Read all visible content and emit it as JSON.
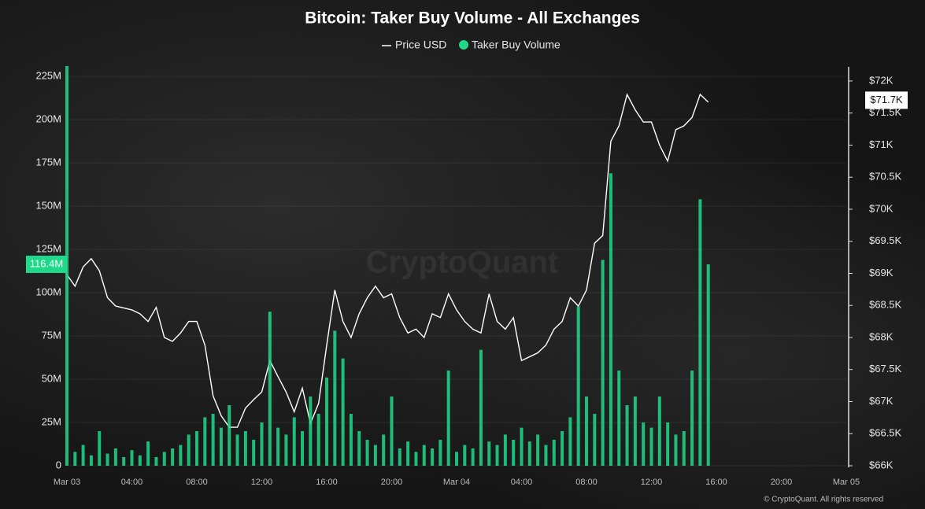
{
  "chart_data": {
    "type": "bar-line",
    "title": "Bitcoin: Taker Buy Volume - All Exchanges",
    "x": [
      0,
      0.5,
      1,
      1.5,
      2,
      2.5,
      3,
      3.5,
      4,
      4.5,
      5,
      5.5,
      6,
      6.5,
      7,
      7.5,
      8,
      8.5,
      9,
      9.5,
      10,
      10.5,
      11,
      11.5,
      12,
      12.5,
      13,
      13.5,
      14,
      14.5,
      15,
      15.5,
      16,
      16.5,
      17,
      17.5,
      18,
      18.5,
      19,
      19.5,
      20,
      20.5,
      21,
      21.5,
      22,
      22.5,
      23,
      23.5,
      24,
      24.5,
      25,
      25.5,
      26,
      26.5,
      27,
      27.5,
      28,
      28.5,
      29,
      29.5,
      30,
      30.5,
      31,
      31.5,
      32,
      32.5,
      33,
      33.5,
      34,
      34.5,
      35,
      35.5,
      36,
      36.5,
      37,
      37.5,
      38,
      38.5,
      39,
      39.5
    ],
    "xlim": [
      0,
      48
    ],
    "xticks": [
      {
        "value": 0,
        "label": "Mar 03"
      },
      {
        "value": 4,
        "label": "04:00"
      },
      {
        "value": 8,
        "label": "08:00"
      },
      {
        "value": 12,
        "label": "12:00"
      },
      {
        "value": 16,
        "label": "16:00"
      },
      {
        "value": 20,
        "label": "20:00"
      },
      {
        "value": 24,
        "label": "Mar 04"
      },
      {
        "value": 28,
        "label": "04:00"
      },
      {
        "value": 32,
        "label": "08:00"
      },
      {
        "value": 36,
        "label": "12:00"
      },
      {
        "value": 40,
        "label": "16:00"
      },
      {
        "value": 44,
        "label": "20:00"
      },
      {
        "value": 48,
        "label": "Mar 05"
      }
    ],
    "ylim": [
      0,
      230500000
    ],
    "yticks": [
      0,
      {
        "value": 25000000,
        "label": "25M"
      },
      {
        "value": 50000000,
        "label": "50M"
      },
      {
        "value": 75000000,
        "label": "75M"
      },
      {
        "value": 100000000,
        "label": "100M"
      },
      {
        "value": 125000000,
        "label": "125M"
      },
      {
        "value": 150000000,
        "label": "150M"
      },
      {
        "value": 175000000,
        "label": "175M"
      },
      {
        "value": 200000000,
        "label": "200M"
      },
      {
        "value": 225000000,
        "label": "225M"
      }
    ],
    "y2lim": [
      66000,
      72220
    ],
    "y2ticks": [
      {
        "value": 66000,
        "label": "$66K"
      },
      {
        "value": 66500,
        "label": "$66.5K"
      },
      {
        "value": 67000,
        "label": "$67K"
      },
      {
        "value": 67500,
        "label": "$67.5K"
      },
      {
        "value": 68000,
        "label": "$68K"
      },
      {
        "value": 68500,
        "label": "$68.5K"
      },
      {
        "value": 69000,
        "label": "$69K"
      },
      {
        "value": 69500,
        "label": "$69.5K"
      },
      {
        "value": 70000,
        "label": "$70K"
      },
      {
        "value": 70500,
        "label": "$70.5K"
      },
      {
        "value": 71000,
        "label": "$71K"
      },
      {
        "value": 71500,
        "label": "$71.5K"
      },
      {
        "value": 72000,
        "label": "$72K"
      }
    ],
    "grid": true,
    "series": [
      {
        "name": "Price USD",
        "color": "#ffffff",
        "axis": "y2",
        "kind": "line",
        "values": [
          68980,
          68800,
          69100,
          69230,
          69040,
          68620,
          68490,
          68460,
          68430,
          68370,
          68250,
          68470,
          68000,
          67940,
          68070,
          68250,
          68250,
          67880,
          67090,
          66780,
          66600,
          66600,
          66900,
          67030,
          67150,
          67640,
          67390,
          67150,
          66840,
          67210,
          66660,
          66970,
          67880,
          68740,
          68250,
          68000,
          68370,
          68620,
          68800,
          68620,
          68680,
          68310,
          68070,
          68130,
          68000,
          68370,
          68310,
          68680,
          68430,
          68250,
          68130,
          68070,
          68680,
          68250,
          68130,
          68310,
          67640,
          67700,
          67760,
          67880,
          68130,
          68250,
          68620,
          68490,
          68740,
          69470,
          69590,
          71060,
          71300,
          71790,
          71550,
          71360,
          71360,
          71000,
          70750,
          71240,
          71300,
          71430,
          71790,
          71670
        ]
      },
      {
        "name": "Taker Buy Volume",
        "color": "#1ed98a",
        "axis": "y",
        "kind": "bar",
        "values": [
          231000000,
          8000000,
          12000000,
          6000000,
          20000000,
          7000000,
          10000000,
          5000000,
          9000000,
          6000000,
          14000000,
          5000000,
          8000000,
          10000000,
          12000000,
          18000000,
          20000000,
          28000000,
          30000000,
          22000000,
          35000000,
          18000000,
          20000000,
          15000000,
          25000000,
          89000000,
          22000000,
          18000000,
          28000000,
          20000000,
          40000000,
          30000000,
          51000000,
          78000000,
          62000000,
          30000000,
          20000000,
          15000000,
          12000000,
          18000000,
          40000000,
          10000000,
          14000000,
          8000000,
          12000000,
          10000000,
          15000000,
          55000000,
          8000000,
          12000000,
          10000000,
          67000000,
          14000000,
          12000000,
          18000000,
          15000000,
          22000000,
          14000000,
          18000000,
          12000000,
          15000000,
          20000000,
          28000000,
          92000000,
          40000000,
          30000000,
          119000000,
          169000000,
          55000000,
          35000000,
          40000000,
          25000000,
          22000000,
          40000000,
          25000000,
          18000000,
          20000000,
          55000000,
          154000000,
          116400000
        ]
      }
    ],
    "annotations": [
      {
        "text": "116.4M",
        "value": 116400000,
        "axis": "y"
      },
      {
        "text": "$71.7K",
        "value": 71700,
        "axis": "y2"
      }
    ],
    "watermark": "CryptoQuant",
    "footer": "© CryptoQuant. All rights reserved"
  }
}
